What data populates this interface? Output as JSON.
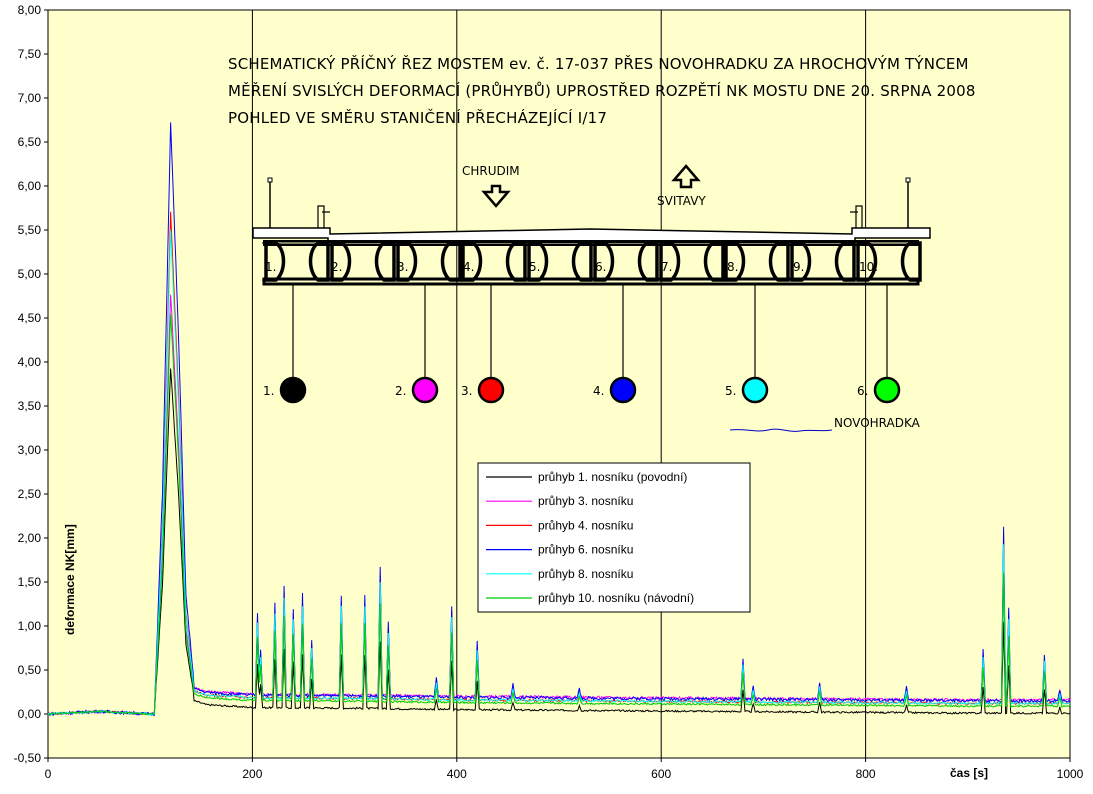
{
  "chart_data": {
    "type": "line",
    "xlabel": "čas [s]",
    "ylabel": "deformace NK[mm]",
    "xlim": [
      0,
      1000
    ],
    "ylim": [
      -0.5,
      8.0
    ],
    "xticks": [
      "0",
      "200",
      "400",
      "600",
      "800",
      "1000"
    ],
    "yticks": [
      "-0,50",
      "0,00",
      "0,50",
      "1,00",
      "1,50",
      "2,00",
      "2,50",
      "3,00",
      "3,50",
      "4,00",
      "4,50",
      "5,00",
      "5,50",
      "6,00",
      "6,50",
      "7,00",
      "7,50",
      "8,00"
    ],
    "grid": "vertical",
    "legend_position": "center",
    "baseline": [
      [
        0,
        0.0
      ],
      [
        50,
        0.03
      ],
      [
        100,
        0.0
      ],
      [
        104,
        0.0
      ],
      [
        112,
        1.5
      ],
      [
        120,
        4.0
      ],
      [
        128,
        2.5
      ],
      [
        135,
        0.8
      ],
      [
        142,
        0.28
      ],
      [
        155,
        0.22
      ],
      [
        200,
        0.18
      ],
      [
        300,
        0.17
      ],
      [
        400,
        0.15
      ],
      [
        500,
        0.14
      ],
      [
        600,
        0.13
      ],
      [
        700,
        0.12
      ],
      [
        800,
        0.11
      ],
      [
        900,
        0.1
      ],
      [
        1000,
        0.1
      ]
    ],
    "spikes": [
      [
        205,
        0.9
      ],
      [
        208,
        0.5
      ],
      [
        222,
        1.0
      ],
      [
        231,
        1.2
      ],
      [
        240,
        0.95
      ],
      [
        249,
        1.1
      ],
      [
        258,
        0.6
      ],
      [
        287,
        1.1
      ],
      [
        310,
        1.1
      ],
      [
        325,
        1.4
      ],
      [
        333,
        0.8
      ],
      [
        380,
        0.2
      ],
      [
        395,
        1.0
      ],
      [
        420,
        0.6
      ],
      [
        455,
        0.15
      ],
      [
        520,
        0.1
      ],
      [
        680,
        0.45
      ],
      [
        690,
        0.15
      ],
      [
        755,
        0.2
      ],
      [
        840,
        0.15
      ],
      [
        915,
        0.55
      ],
      [
        935,
        1.9
      ],
      [
        940,
        1.0
      ],
      [
        975,
        0.5
      ],
      [
        990,
        0.12
      ]
    ],
    "series": [
      {
        "name": "průhyb 1. nosníku (povodní)",
        "color": "#000000",
        "peak": 3.93,
        "scale": 0.55,
        "offset": -0.05,
        "end": 0.06,
        "noise": 0.01
      },
      {
        "name": "průhyb 3. nosníku",
        "color": "#ff00ff",
        "peak": 4.78,
        "scale": 0.85,
        "offset": 0.02,
        "end": 0.14,
        "noise": 0.015
      },
      {
        "name": "průhyb 4. nosníku",
        "color": "#ff0000",
        "peak": 5.7,
        "scale": 1.0,
        "offset": 0.0,
        "end": 0.12,
        "noise": 0.012
      },
      {
        "name": "průhyb 6. nosníku",
        "color": "#0000ff",
        "peak": 6.72,
        "scale": 1.05,
        "offset": 0.0,
        "end": 0.15,
        "noise": 0.018
      },
      {
        "name": "průhyb 8. nosníku",
        "color": "#00ffff",
        "peak": 5.5,
        "scale": 0.95,
        "offset": -0.01,
        "end": 0.13,
        "noise": 0.012
      },
      {
        "name": "průhyb 10. nosníku (návodní)",
        "color": "#00cc00",
        "peak": 4.55,
        "scale": 0.8,
        "offset": -0.02,
        "end": 0.11,
        "noise": 0.01
      }
    ]
  },
  "annotation": {
    "line1": "SCHEMATICKÝ PŘÍČNÝ ŘEZ MOSTEM ev. č. 17-037 PŘES NOVOHRADKU ZA HROCHOVÝM TÝNCEM",
    "line2": "MĚŘENÍ SVISLÝCH DEFORMACÍ (PRŮHYBŮ) UPROSTŘED ROZPĚTÍ NK MOSTU DNE 20. SRPNA 2008",
    "line3": "POHLED VE SMĚRU STANIČENÍ PŘECHÁZEJÍCÍ I/17",
    "chrudim": "CHRUDIM",
    "svitavy": "SVITAVY",
    "river": "NOVOHRADKA",
    "beam_labels": [
      "1.",
      "2.",
      "3.",
      "4.",
      "5.",
      "6.",
      "7.",
      "8.",
      "9.",
      "10."
    ],
    "sensors": [
      {
        "label": "1.",
        "color": "#000000"
      },
      {
        "label": "2.",
        "color": "#ff00ff"
      },
      {
        "label": "3.",
        "color": "#ff0000"
      },
      {
        "label": "4.",
        "color": "#0000ff"
      },
      {
        "label": "5.",
        "color": "#00ffff"
      },
      {
        "label": "6.",
        "color": "#00ff00"
      }
    ]
  },
  "colors": {
    "plot_background": "#ffffcc",
    "grid": "#000000"
  }
}
